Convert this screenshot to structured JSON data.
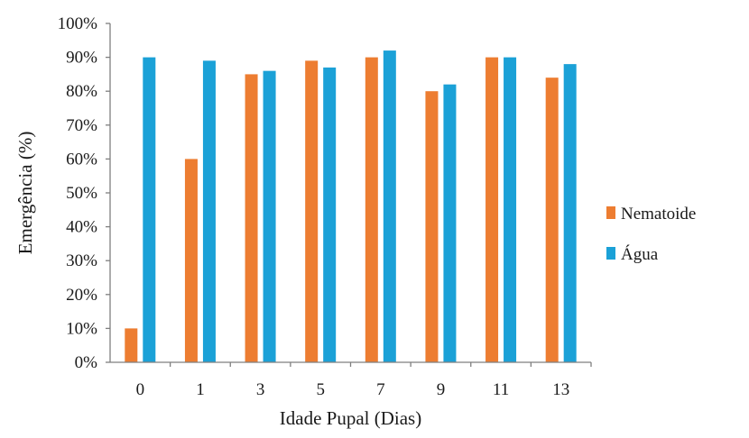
{
  "chart_data": {
    "type": "bar",
    "xlabel": "Idade Pupal (Dias)",
    "ylabel": "Emergência (%)",
    "categories": [
      "0",
      "1",
      "3",
      "5",
      "7",
      "9",
      "11",
      "13"
    ],
    "ylim": [
      0,
      100
    ],
    "yticks": [
      "0%",
      "10%",
      "20%",
      "30%",
      "40%",
      "50%",
      "60%",
      "70%",
      "80%",
      "90%",
      "100%"
    ],
    "series": [
      {
        "name": "Nematoide",
        "color": "#ED7D31",
        "values": [
          10,
          60,
          85,
          89,
          90,
          80,
          90,
          84
        ]
      },
      {
        "name": "Água",
        "color": "#1BA1D7",
        "values": [
          90,
          89,
          86,
          87,
          92,
          82,
          90,
          88
        ]
      }
    ],
    "grid": false,
    "legend_position": "right"
  }
}
